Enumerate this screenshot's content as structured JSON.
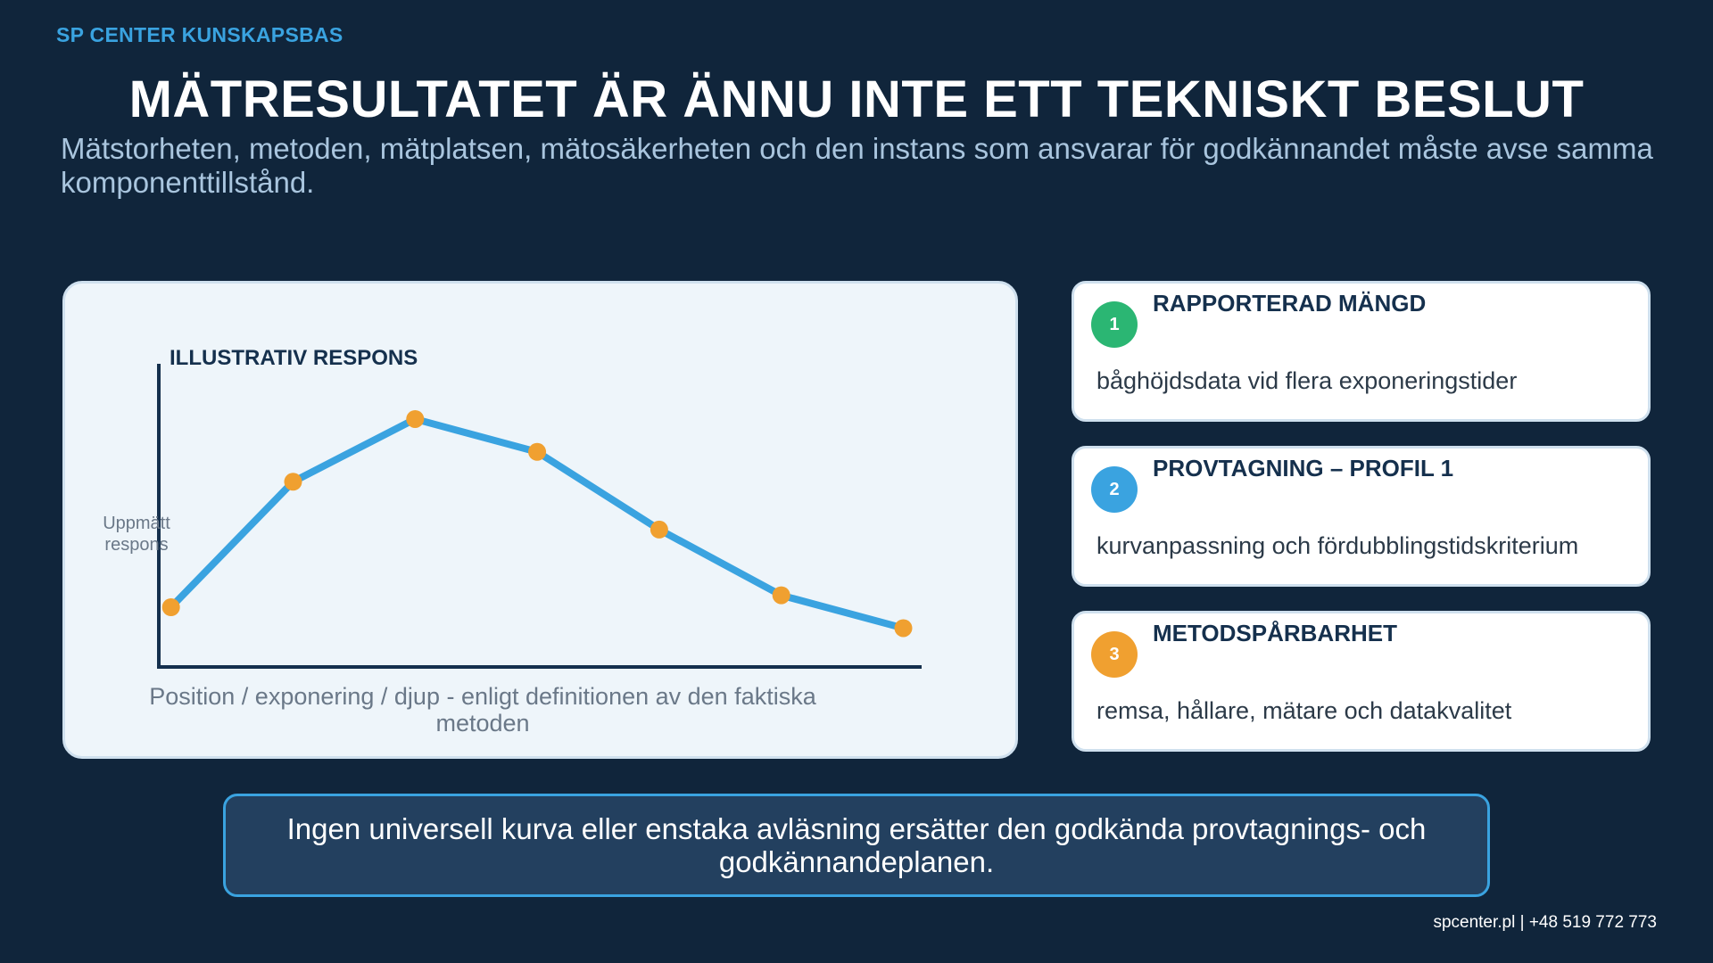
{
  "brand": "SP CENTER KUNSKAPSBAS",
  "title": "MÄTRESULTATET ÄR ÄNNU INTE ETT TEKNISKT BESLUT",
  "subtitle": "Mätstorheten, metoden, mätplatsen, mätosäkerheten och den instans som ansvarar för godkännandet måste avse samma komponenttillstånd.",
  "chart_data": {
    "type": "line",
    "title": "ILLUSTRATIV RESPONS",
    "ylabel": "Uppmätt respons",
    "xlabel": "Position / exponering / djup - enligt definitionen av den faktiska metoden",
    "x": [
      1,
      2,
      3,
      4,
      5,
      6,
      7
    ],
    "series": [
      {
        "values": [
          0.2,
          0.62,
          0.83,
          0.72,
          0.46,
          0.24,
          0.13
        ]
      }
    ],
    "xlim": [
      0.9,
      7.15
    ],
    "ylim": [
      0,
      1
    ],
    "grid": false,
    "line_color": "#3aa3e0",
    "marker_color": "#f0a030",
    "axis_color": "#15304d"
  },
  "steps": [
    {
      "num": "1",
      "title": "RAPPORTERAD MÄNGD",
      "desc": "båghöjdsdata vid flera exponeringstider",
      "color": "#2bb673"
    },
    {
      "num": "2",
      "title": "PROVTAGNING – PROFIL 1",
      "desc": "kurvanpassning och fördubblingstidskriterium",
      "color": "#3aa3e0"
    },
    {
      "num": "3",
      "title": "METODSPÅRBARHET",
      "desc": "remsa, hållare, mätare och datakvalitet",
      "color": "#f0a030"
    }
  ],
  "note": "Ingen universell kurva eller enstaka avläsning ersätter den godkända provtagnings- och godkännandeplanen.",
  "footer": "spcenter.pl  |  +48 519 772 773"
}
